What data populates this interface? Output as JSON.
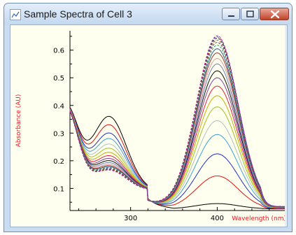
{
  "window": {
    "title": "Sample Spectra of Cell 3",
    "app_icon": "chart-icon",
    "controls": [
      "minimize-icon",
      "maximize-icon",
      "close-icon"
    ],
    "colors": {
      "titlebar": "#c9dcf1",
      "plot_bg": "#fffff0",
      "axis_label": "#e0202a"
    }
  },
  "chart_data": {
    "type": "line",
    "title": "",
    "xlabel": "Wavelength (nm)",
    "ylabel": "Absorbance (AU)",
    "xlim": [
      230,
      478
    ],
    "ylim": [
      0.02,
      0.67
    ],
    "xticks": [
      300,
      400
    ],
    "yticks": [
      0.1,
      0.2,
      0.3,
      0.4,
      0.5,
      0.6
    ],
    "grid": false,
    "legend": "none",
    "isosbestic_point": {
      "x": 320,
      "y": 0.09
    },
    "series": [
      {
        "color": "#000000",
        "peak400": 0.045,
        "peak275": 0.37,
        "tail": 0.026
      },
      {
        "color": "#e01010",
        "peak400": 0.145,
        "peak275": 0.34,
        "tail": 0.027
      },
      {
        "color": "#2030c0",
        "peak400": 0.225,
        "peak275": 0.31,
        "tail": 0.028
      },
      {
        "color": "#40a0d0",
        "peak400": 0.295,
        "peak275": 0.29,
        "tail": 0.029
      },
      {
        "color": "#b0c0c0",
        "peak400": 0.345,
        "peak275": 0.27,
        "tail": 0.03
      },
      {
        "color": "#a0c020",
        "peak400": 0.395,
        "peak275": 0.255,
        "tail": 0.03
      },
      {
        "color": "#c0b000",
        "peak400": 0.435,
        "peak275": 0.24,
        "tail": 0.031
      },
      {
        "color": "#e02040",
        "peak400": 0.47,
        "peak275": 0.228,
        "tail": 0.031
      },
      {
        "color": "#8040a0",
        "peak400": 0.5,
        "peak275": 0.218,
        "tail": 0.032
      },
      {
        "color": "#101010",
        "peak400": 0.525,
        "peak275": 0.21,
        "tail": 0.032
      },
      {
        "color": "#7080c0",
        "peak400": 0.55,
        "peak275": 0.203,
        "tail": 0.032
      },
      {
        "color": "#d0a0a0",
        "peak400": 0.57,
        "peak275": 0.197,
        "tail": 0.033
      },
      {
        "color": "#a03030",
        "peak400": 0.59,
        "peak275": 0.192,
        "tail": 0.033
      },
      {
        "color": "#306090",
        "peak400": 0.605,
        "peak275": 0.188,
        "tail": 0.033
      },
      {
        "color": "#20a060",
        "peak400": 0.618,
        "peak275": 0.185,
        "tail": 0.033
      },
      {
        "color": "#604080",
        "peak400": 0.628,
        "peak275": 0.182,
        "tail": 0.034
      },
      {
        "color": "#b06020",
        "peak400": 0.636,
        "peak275": 0.18,
        "tail": 0.034
      },
      {
        "color": "#303030",
        "peak400": 0.643,
        "peak275": 0.178,
        "tail": 0.034
      },
      {
        "color": "#5050d0",
        "peak400": 0.648,
        "peak275": 0.177,
        "tail": 0.034
      },
      {
        "color": "#c02080",
        "peak400": 0.652,
        "peak275": 0.176,
        "tail": 0.034
      }
    ]
  }
}
